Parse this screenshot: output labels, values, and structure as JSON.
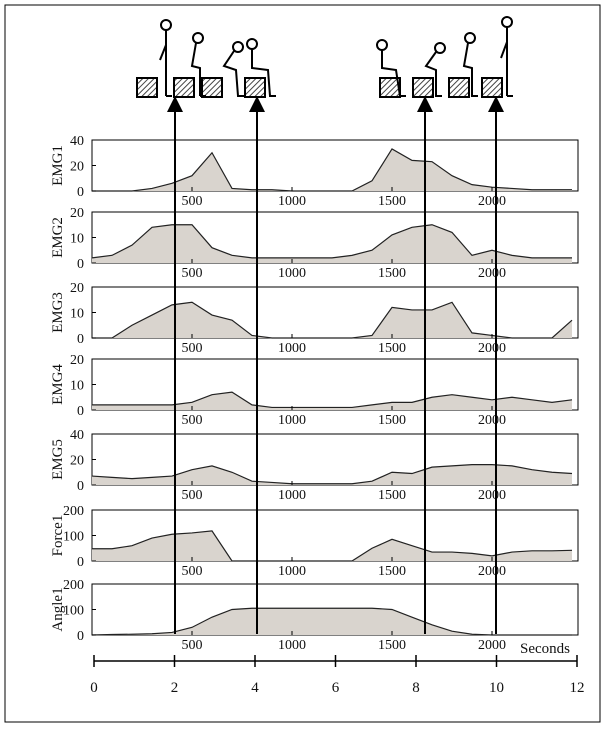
{
  "chart_data": [
    {
      "type": "area",
      "ylabel": "EMG1",
      "x": [
        0,
        100,
        200,
        300,
        400,
        500,
        600,
        700,
        800,
        900,
        1000,
        1100,
        1200,
        1300,
        1400,
        1500,
        1600,
        1700,
        1800,
        1900,
        2000,
        2100,
        2200,
        2300,
        2400
      ],
      "values": [
        0,
        0,
        0,
        2,
        6,
        12,
        30,
        2,
        1,
        1,
        0,
        0,
        0,
        0,
        8,
        33,
        24,
        23,
        12,
        5,
        3,
        2,
        1,
        1,
        1
      ],
      "xlim": [
        0,
        2430
      ],
      "ylim": [
        0,
        40
      ],
      "yticks": [
        0,
        20,
        40
      ],
      "xticks": [
        500,
        1000,
        1500,
        2000
      ],
      "color": "#d9d4ce"
    },
    {
      "type": "area",
      "ylabel": "EMG2",
      "x": [
        0,
        100,
        200,
        300,
        400,
        500,
        600,
        700,
        800,
        900,
        1000,
        1100,
        1200,
        1300,
        1400,
        1500,
        1600,
        1700,
        1800,
        1900,
        2000,
        2100,
        2200,
        2300,
        2400
      ],
      "values": [
        2,
        3,
        7,
        14,
        15,
        15,
        6,
        3,
        2,
        2,
        2,
        2,
        2,
        3,
        5,
        11,
        14,
        15,
        12,
        3,
        5,
        3,
        2,
        2,
        2
      ],
      "xlim": [
        0,
        2430
      ],
      "ylim": [
        0,
        20
      ],
      "yticks": [
        0,
        10,
        20
      ],
      "xticks": [
        500,
        1000,
        1500,
        2000
      ],
      "color": "#d9d4ce"
    },
    {
      "type": "area",
      "ylabel": "EMG3",
      "x": [
        0,
        100,
        200,
        300,
        400,
        500,
        600,
        700,
        800,
        900,
        1000,
        1100,
        1200,
        1300,
        1400,
        1500,
        1600,
        1700,
        1800,
        1900,
        2000,
        2100,
        2200,
        2300,
        2400
      ],
      "values": [
        0,
        0,
        5,
        9,
        13,
        14,
        9,
        7,
        1,
        0,
        0,
        0,
        0,
        0,
        1,
        12,
        11,
        11,
        14,
        2,
        1,
        0,
        0,
        0,
        7
      ],
      "xlim": [
        0,
        2430
      ],
      "ylim": [
        0,
        20
      ],
      "yticks": [
        0,
        10,
        20
      ],
      "xticks": [
        500,
        1000,
        1500,
        2000
      ],
      "color": "#d9d4ce"
    },
    {
      "type": "area",
      "ylabel": "EMG4",
      "x": [
        0,
        100,
        200,
        300,
        400,
        500,
        600,
        700,
        800,
        900,
        1000,
        1100,
        1200,
        1300,
        1400,
        1500,
        1600,
        1700,
        1800,
        1900,
        2000,
        2100,
        2200,
        2300,
        2400
      ],
      "values": [
        2,
        2,
        2,
        2,
        2,
        3,
        6,
        7,
        2,
        1,
        1,
        1,
        1,
        1,
        2,
        3,
        3,
        5,
        6,
        5,
        4,
        5,
        4,
        3,
        4
      ],
      "xlim": [
        0,
        2430
      ],
      "ylim": [
        0,
        20
      ],
      "yticks": [
        0,
        10,
        20
      ],
      "xticks": [
        500,
        1000,
        1500,
        2000
      ],
      "color": "#d9d4ce"
    },
    {
      "type": "area",
      "ylabel": "EMG5",
      "x": [
        0,
        100,
        200,
        300,
        400,
        500,
        600,
        700,
        800,
        900,
        1000,
        1100,
        1200,
        1300,
        1400,
        1500,
        1600,
        1700,
        1800,
        1900,
        2000,
        2100,
        2200,
        2300,
        2400
      ],
      "values": [
        7,
        6,
        5,
        6,
        7,
        12,
        15,
        10,
        3,
        2,
        1,
        1,
        1,
        1,
        3,
        10,
        9,
        14,
        15,
        16,
        16,
        15,
        12,
        10,
        9
      ],
      "xlim": [
        0,
        2430
      ],
      "ylim": [
        0,
        40
      ],
      "yticks": [
        0,
        20,
        40
      ],
      "xticks": [
        500,
        1000,
        1500,
        2000
      ],
      "color": "#d9d4ce"
    },
    {
      "type": "area",
      "ylabel": "Force1",
      "x": [
        0,
        100,
        200,
        300,
        400,
        500,
        600,
        700,
        800,
        900,
        1000,
        1100,
        1200,
        1300,
        1400,
        1500,
        1600,
        1700,
        1800,
        1900,
        2000,
        2100,
        2200,
        2300,
        2400
      ],
      "values": [
        48,
        48,
        60,
        90,
        105,
        110,
        118,
        0,
        0,
        0,
        0,
        0,
        0,
        0,
        50,
        85,
        60,
        35,
        35,
        30,
        20,
        35,
        40,
        40,
        42
      ],
      "xlim": [
        0,
        2430
      ],
      "ylim": [
        0,
        200
      ],
      "yticks": [
        0,
        100,
        200
      ],
      "xticks": [
        500,
        1000,
        1500,
        2000
      ],
      "color": "#d9d4ce"
    },
    {
      "type": "area",
      "ylabel": "Angle1",
      "x": [
        0,
        100,
        200,
        300,
        400,
        500,
        600,
        700,
        800,
        900,
        1000,
        1100,
        1200,
        1300,
        1400,
        1500,
        1600,
        1700,
        1800,
        1900,
        2000,
        2100,
        2200,
        2300,
        2400
      ],
      "values": [
        0,
        2,
        3,
        5,
        10,
        30,
        70,
        100,
        105,
        105,
        105,
        105,
        105,
        105,
        105,
        100,
        70,
        40,
        15,
        3,
        0,
        0,
        0,
        0,
        0
      ],
      "xlim": [
        0,
        2430
      ],
      "ylim": [
        0,
        200
      ],
      "yticks": [
        0,
        100,
        200
      ],
      "xticks": [
        500,
        1000,
        1500,
        2000
      ],
      "color": "#d9d4ce"
    },
    {
      "type": "axis",
      "xlabel": "Seconds",
      "xlim": [
        0,
        12
      ],
      "xticks": [
        0,
        2,
        4,
        6,
        8,
        10,
        12
      ]
    }
  ]
}
